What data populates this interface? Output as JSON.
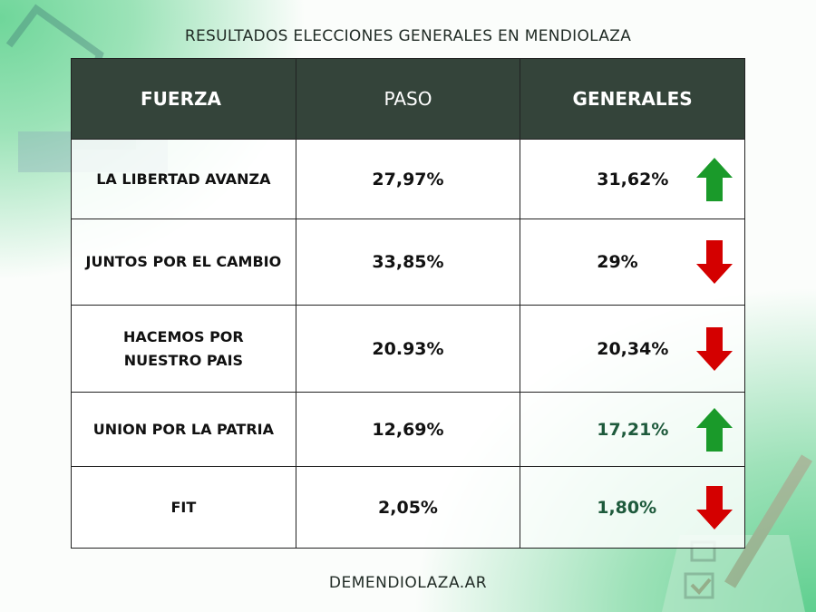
{
  "title": "RESULTADOS ELECCIONES GENERALES EN MENDIOLAZA",
  "headers": {
    "fuerza": "FUERZA",
    "paso": "PASO",
    "generales": "GENERALES"
  },
  "rows": [
    {
      "fuerza": "LA LIBERTAD AVANZA",
      "paso": "27,97%",
      "generales": "31,62%",
      "trend": "up"
    },
    {
      "fuerza": "JUNTOS POR EL CAMBIO",
      "paso": "33,85%",
      "generales": "29%",
      "trend": "down"
    },
    {
      "fuerza": "HACEMOS POR NUESTRO PAIS",
      "paso": "20.93%",
      "generales": "20,34%",
      "trend": "down"
    },
    {
      "fuerza": "UNION POR LA PATRIA",
      "paso": "12,69%",
      "generales": "17,21%",
      "trend": "up"
    },
    {
      "fuerza": "FIT",
      "paso": "2,05%",
      "generales": "1,80%",
      "trend": "down"
    }
  ],
  "colors": {
    "header_bg": "#34443a",
    "up": "#1a9a2a",
    "down": "#d40000",
    "accent_green": "#1e5a3c"
  },
  "footer": "DEMENDIOLAZA.AR"
}
